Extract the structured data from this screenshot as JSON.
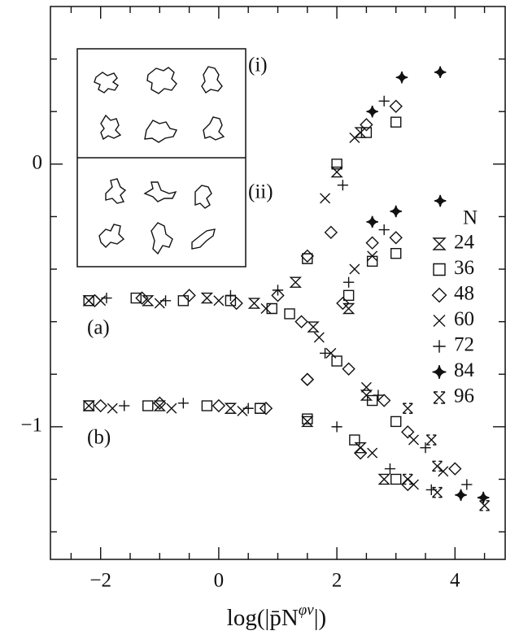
{
  "chart_data": {
    "type": "scatter",
    "xlabel": {
      "base": "log(|p̄N",
      "sup": "φν",
      "end": "|)"
    },
    "xlim": [
      -2.85,
      4.85
    ],
    "ylim": [
      -1.505,
      0.6
    ],
    "xticks": [
      {
        "value": -2,
        "label": "−2"
      },
      0,
      2,
      4
    ],
    "yticks": [
      {
        "value": -1,
        "label": "−1"
      },
      0
    ],
    "xminorticks": [
      -2.5,
      -1.5,
      -1,
      -0.5,
      0.5,
      1,
      1.5,
      2.5,
      3,
      3.5,
      4.5
    ],
    "yminorticks": [
      -1.4,
      -1.2,
      -0.8,
      -0.6,
      -0.4,
      -0.2,
      0.2,
      0.4
    ],
    "annotations": [
      "(i)",
      "(ii)",
      "(a)",
      "(b)"
    ],
    "legend_title": "N",
    "series": [
      {
        "name": "24",
        "marker": "bowtie-box",
        "color": "#111",
        "x": [
          -2.2,
          -1.2,
          -0.2,
          0.6,
          1.3,
          2.0,
          2.4,
          1.6,
          2.5,
          -2.2,
          -1.0,
          0.2,
          1.5,
          2.2,
          2.4,
          2.8
        ],
        "y": [
          -0.52,
          -0.52,
          -0.51,
          -0.53,
          -0.45,
          -0.03,
          0.12,
          -0.62,
          -0.88,
          -0.92,
          -0.92,
          -0.93,
          -0.98,
          -0.55,
          -1.08,
          -1.2
        ]
      },
      {
        "name": "36",
        "marker": "square",
        "color": "#111",
        "x": [
          -2.2,
          -1.4,
          -0.6,
          0.2,
          0.9,
          1.5,
          2.0,
          2.5,
          3.0,
          1.2,
          2.0,
          2.6,
          3.0,
          -2.2,
          -1.2,
          -0.2,
          0.7,
          1.5,
          2.3,
          3.0,
          2.2,
          2.6,
          3.0
        ],
        "y": [
          -0.52,
          -0.51,
          -0.52,
          -0.52,
          -0.55,
          -0.36,
          0.0,
          0.12,
          0.16,
          -0.57,
          -0.75,
          -0.9,
          -0.98,
          -0.92,
          -0.92,
          -0.92,
          -0.93,
          -0.97,
          -1.05,
          -1.2,
          -0.5,
          -0.37,
          -0.34
        ]
      },
      {
        "name": "48",
        "marker": "diamond",
        "color": "#111",
        "x": [
          -2.1,
          -1.3,
          -0.5,
          0.3,
          1.0,
          1.5,
          1.9,
          2.5,
          3.0,
          1.4,
          2.2,
          2.8,
          3.2,
          -2.0,
          -1.0,
          0.0,
          0.8,
          1.5,
          2.4,
          3.2,
          1.5,
          2.1,
          2.6,
          3.0,
          4.0
        ],
        "y": [
          -0.52,
          -0.51,
          -0.5,
          -0.53,
          -0.5,
          -0.35,
          -0.26,
          0.15,
          0.22,
          -0.6,
          -0.78,
          -0.9,
          -1.02,
          -0.92,
          -0.91,
          -0.92,
          -0.93,
          -0.82,
          -1.1,
          -1.22,
          -0.82,
          -0.53,
          -0.3,
          -0.28,
          -1.16
        ]
      },
      {
        "name": "60",
        "marker": "x",
        "color": "#111",
        "x": [
          -2.0,
          -1.0,
          0.0,
          0.8,
          1.8,
          2.3,
          1.7,
          2.5,
          3.3,
          3.8,
          -1.8,
          -0.8,
          0.4,
          1.9,
          2.6,
          3.3,
          2.3,
          2.6
        ],
        "y": [
          -0.52,
          -0.53,
          -0.52,
          -0.55,
          -0.13,
          0.1,
          -0.66,
          -0.85,
          -1.05,
          -1.17,
          -0.93,
          -0.93,
          -0.94,
          -0.72,
          -1.1,
          -1.22,
          -0.4,
          -0.35
        ]
      },
      {
        "name": "72",
        "marker": "plus",
        "color": "#111",
        "x": [
          -1.9,
          -0.9,
          0.2,
          1.0,
          2.1,
          2.8,
          1.8,
          2.7,
          3.5,
          4.2,
          -1.6,
          -0.6,
          0.5,
          2.0,
          2.9,
          3.6,
          2.2,
          2.8
        ],
        "y": [
          -0.51,
          -0.52,
          -0.5,
          -0.48,
          -0.08,
          0.24,
          -0.72,
          -0.88,
          -1.08,
          -1.22,
          -0.92,
          -0.91,
          -0.93,
          -1.0,
          -1.16,
          -1.24,
          -0.45,
          -0.25
        ]
      },
      {
        "name": "84",
        "marker": "star",
        "color": "#111",
        "x": [
          2.6,
          3.1,
          3.75,
          2.6,
          3.0,
          3.75,
          4.1,
          4.48
        ],
        "y": [
          0.2,
          0.33,
          0.35,
          -0.22,
          -0.18,
          -0.14,
          -1.26,
          -1.27
        ]
      },
      {
        "name": "96",
        "marker": "bowtie",
        "color": "#111",
        "x": [
          3.2,
          3.6,
          3.7,
          3.2,
          3.7,
          4.5
        ],
        "y": [
          -0.93,
          -1.05,
          -1.15,
          -1.2,
          -1.25,
          -1.3
        ]
      }
    ]
  }
}
